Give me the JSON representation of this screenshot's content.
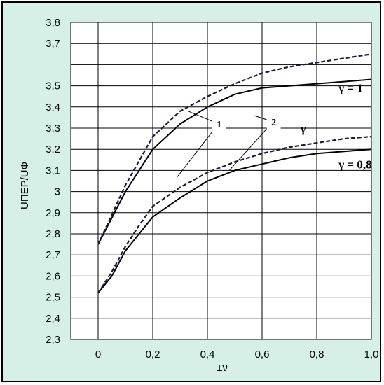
{
  "chart_data": {
    "type": "line",
    "xlabel": "±ν",
    "ylabel": "UПЕР/UФ",
    "xlim": [
      -0.1,
      1.0
    ],
    "ylim": [
      2.3,
      3.8
    ],
    "x_ticks": [
      "0",
      "0,2",
      "0,4",
      "0,6",
      "0,8",
      "1,0"
    ],
    "x_tick_values": [
      0,
      0.2,
      0.4,
      0.6,
      0.8,
      1.0
    ],
    "y_ticks": [
      "2,3",
      "2,4",
      "2,5",
      "2,6",
      "2,7",
      "2,8",
      "2,9",
      "3",
      "3,1",
      "3,2",
      "3,3",
      "3,4",
      "3,5",
      "3,7",
      "3,8"
    ],
    "y_tick_values": [
      2.3,
      2.4,
      2.5,
      2.6,
      2.7,
      2.8,
      2.9,
      3.0,
      3.1,
      3.2,
      3.3,
      3.4,
      3.5,
      3.7,
      3.8
    ],
    "x_gridlines": [
      0,
      0.2,
      0.4,
      0.6,
      0.8,
      1.0
    ],
    "y_gridlines": [
      2.3,
      2.4,
      2.5,
      2.6,
      2.7,
      2.8,
      2.9,
      3.0,
      3.1,
      3.2,
      3.3,
      3.4,
      3.5,
      3.6,
      3.7,
      3.8
    ],
    "grid": true,
    "series": [
      {
        "style": "solid",
        "color": "#000000",
        "x": [
          0,
          0.1,
          0.2,
          0.3,
          0.4,
          0.5,
          0.6,
          0.7,
          0.8,
          0.9,
          1.0
        ],
        "y": [
          2.75,
          3.0,
          3.2,
          3.32,
          3.4,
          3.46,
          3.49,
          3.5,
          3.51,
          3.52,
          3.53
        ]
      },
      {
        "style": "dashed",
        "color": "#1a1a3a",
        "x": [
          0,
          0.1,
          0.2,
          0.3,
          0.4,
          0.5,
          0.6,
          0.7,
          0.8,
          0.9,
          1.0
        ],
        "y": [
          2.75,
          3.03,
          3.26,
          3.38,
          3.45,
          3.51,
          3.56,
          3.59,
          3.61,
          3.63,
          3.65
        ]
      },
      {
        "style": "solid",
        "color": "#000000",
        "x": [
          0,
          0.05,
          0.1,
          0.15,
          0.2,
          0.3,
          0.4,
          0.5,
          0.6,
          0.7,
          0.8,
          0.9,
          1.0
        ],
        "y": [
          2.52,
          2.6,
          2.72,
          2.8,
          2.88,
          2.97,
          3.05,
          3.1,
          3.13,
          3.16,
          3.18,
          3.19,
          3.2
        ]
      },
      {
        "style": "dashed",
        "color": "#1a1a3a",
        "x": [
          0,
          0.05,
          0.1,
          0.15,
          0.2,
          0.3,
          0.4,
          0.5,
          0.6,
          0.7,
          0.8,
          0.9,
          1.0
        ],
        "y": [
          2.52,
          2.62,
          2.74,
          2.84,
          2.93,
          3.02,
          3.09,
          3.14,
          3.18,
          3.21,
          3.23,
          3.25,
          3.26
        ]
      }
    ],
    "annotations": [
      {
        "text": "γ = 1",
        "x": 0.88,
        "y": 3.47,
        "style": "label"
      },
      {
        "text": "γ",
        "x": 0.74,
        "y": 3.28,
        "style": "label"
      },
      {
        "text": "γ = 0,8",
        "x": 0.88,
        "y": 3.11,
        "style": "label"
      },
      {
        "text": "1",
        "x": 0.44,
        "y": 3.32,
        "style": "box",
        "pointers": [
          [
            0.33,
            3.38
          ],
          [
            0.29,
            3.07
          ]
        ]
      },
      {
        "text": "2",
        "x": 0.64,
        "y": 3.33,
        "style": "box",
        "pointers": [
          [
            0.57,
            3.36
          ],
          [
            0.48,
            3.1
          ]
        ]
      }
    ]
  }
}
